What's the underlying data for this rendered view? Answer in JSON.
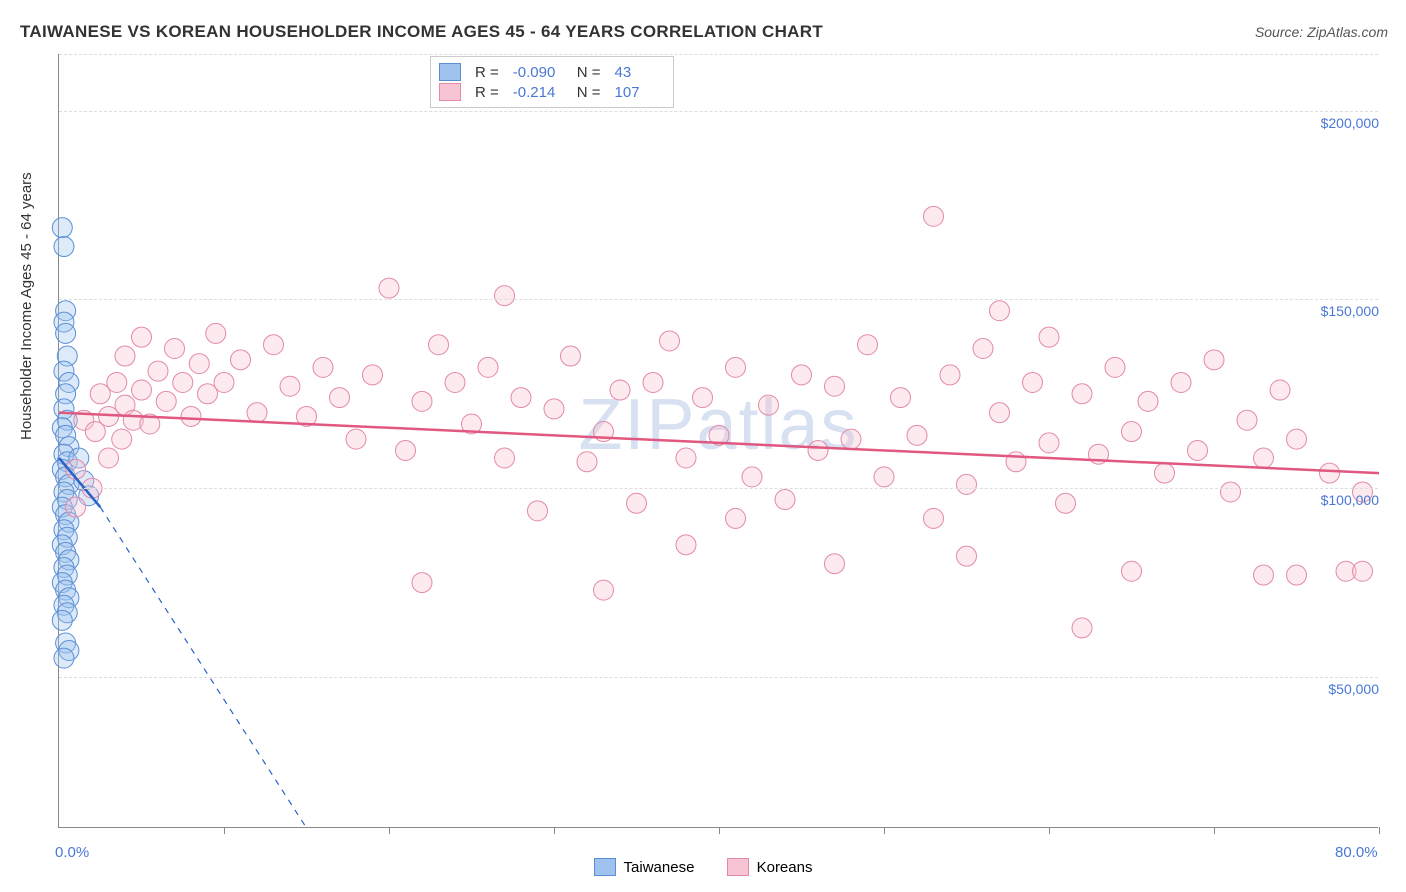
{
  "title": "TAIWANESE VS KOREAN HOUSEHOLDER INCOME AGES 45 - 64 YEARS CORRELATION CHART",
  "source": "Source: ZipAtlas.com",
  "watermark": "ZIPatlas",
  "y_axis_title": "Householder Income Ages 45 - 64 years",
  "chart": {
    "type": "scatter",
    "xlim": [
      0,
      80
    ],
    "ylim": [
      10000,
      215000
    ],
    "x_ticks_minor": [
      10,
      20,
      30,
      40,
      50,
      60,
      70,
      80
    ],
    "x_labels": [
      {
        "v": 0,
        "t": "0.0%"
      },
      {
        "v": 80,
        "t": "80.0%"
      }
    ],
    "y_gridlines": [
      50000,
      100000,
      150000,
      200000,
      215000
    ],
    "y_labels": [
      {
        "v": 50000,
        "t": "$50,000"
      },
      {
        "v": 100000,
        "t": "$100,000"
      },
      {
        "v": 150000,
        "t": "$150,000"
      },
      {
        "v": 200000,
        "t": "$200,000"
      }
    ],
    "background_color": "#ffffff",
    "grid_color": "#dddddd",
    "axis_color": "#888888",
    "label_color": "#4a78d6",
    "marker_radius": 10,
    "marker_opacity": 0.35,
    "series": [
      {
        "name": "Taiwanese",
        "color_fill": "#9fc2ef",
        "color_stroke": "#5a8fd6",
        "R": "-0.090",
        "N": "43",
        "trend": {
          "x1": 0,
          "y1": 108000,
          "x2": 2.5,
          "y2": 95000,
          "dash_x2": 15,
          "dash_y2": 10000,
          "color": "#2a62c9",
          "width": 2.5
        },
        "points": [
          [
            0.2,
            169000
          ],
          [
            0.3,
            164000
          ],
          [
            0.4,
            147000
          ],
          [
            0.3,
            144000
          ],
          [
            0.4,
            141000
          ],
          [
            0.5,
            135000
          ],
          [
            0.3,
            131000
          ],
          [
            0.6,
            128000
          ],
          [
            0.4,
            125000
          ],
          [
            0.3,
            121000
          ],
          [
            0.5,
            118000
          ],
          [
            0.2,
            116000
          ],
          [
            0.4,
            114000
          ],
          [
            0.6,
            111000
          ],
          [
            0.3,
            109000
          ],
          [
            0.5,
            107000
          ],
          [
            0.2,
            105000
          ],
          [
            0.4,
            103000
          ],
          [
            0.6,
            101000
          ],
          [
            0.3,
            99000
          ],
          [
            0.5,
            97000
          ],
          [
            0.2,
            95000
          ],
          [
            0.4,
            93000
          ],
          [
            0.6,
            91000
          ],
          [
            0.3,
            89000
          ],
          [
            0.5,
            87000
          ],
          [
            0.2,
            85000
          ],
          [
            0.4,
            83000
          ],
          [
            0.6,
            81000
          ],
          [
            0.3,
            79000
          ],
          [
            0.5,
            77000
          ],
          [
            0.2,
            75000
          ],
          [
            0.4,
            73000
          ],
          [
            0.6,
            71000
          ],
          [
            0.3,
            69000
          ],
          [
            0.5,
            67000
          ],
          [
            0.2,
            65000
          ],
          [
            0.4,
            59000
          ],
          [
            0.6,
            57000
          ],
          [
            0.3,
            55000
          ],
          [
            1.2,
            108000
          ],
          [
            1.5,
            102000
          ],
          [
            1.8,
            98000
          ]
        ]
      },
      {
        "name": "Koreans",
        "color_fill": "#f6c4d2",
        "color_stroke": "#e389a8",
        "R": "-0.214",
        "N": "107",
        "trend": {
          "x1": 0,
          "y1": 120000,
          "x2": 80,
          "y2": 104000,
          "color": "#e0577f",
          "width": 2.5
        },
        "points": [
          [
            1,
            95000
          ],
          [
            1,
            105000
          ],
          [
            1.5,
            118000
          ],
          [
            2,
            100000
          ],
          [
            2.2,
            115000
          ],
          [
            2.5,
            125000
          ],
          [
            3,
            108000
          ],
          [
            3,
            119000
          ],
          [
            3.5,
            128000
          ],
          [
            3.8,
            113000
          ],
          [
            4,
            122000
          ],
          [
            4,
            135000
          ],
          [
            4.5,
            118000
          ],
          [
            5,
            126000
          ],
          [
            5,
            140000
          ],
          [
            5.5,
            117000
          ],
          [
            6,
            131000
          ],
          [
            6.5,
            123000
          ],
          [
            7,
            137000
          ],
          [
            7.5,
            128000
          ],
          [
            8,
            119000
          ],
          [
            8.5,
            133000
          ],
          [
            9,
            125000
          ],
          [
            9.5,
            141000
          ],
          [
            10,
            128000
          ],
          [
            11,
            134000
          ],
          [
            12,
            120000
          ],
          [
            13,
            138000
          ],
          [
            14,
            127000
          ],
          [
            15,
            119000
          ],
          [
            16,
            132000
          ],
          [
            17,
            124000
          ],
          [
            18,
            113000
          ],
          [
            19,
            130000
          ],
          [
            20,
            153000
          ],
          [
            21,
            110000
          ],
          [
            22,
            123000
          ],
          [
            23,
            138000
          ],
          [
            22,
            75000
          ],
          [
            24,
            128000
          ],
          [
            25,
            117000
          ],
          [
            26,
            132000
          ],
          [
            27,
            108000
          ],
          [
            27,
            151000
          ],
          [
            28,
            124000
          ],
          [
            29,
            94000
          ],
          [
            30,
            121000
          ],
          [
            31,
            135000
          ],
          [
            32,
            107000
          ],
          [
            33,
            115000
          ],
          [
            33,
            73000
          ],
          [
            34,
            126000
          ],
          [
            35,
            96000
          ],
          [
            36,
            128000
          ],
          [
            37,
            139000
          ],
          [
            38,
            108000
          ],
          [
            38,
            85000
          ],
          [
            39,
            124000
          ],
          [
            40,
            114000
          ],
          [
            41,
            132000
          ],
          [
            41,
            92000
          ],
          [
            42,
            103000
          ],
          [
            43,
            122000
          ],
          [
            44,
            97000
          ],
          [
            45,
            130000
          ],
          [
            46,
            110000
          ],
          [
            47,
            127000
          ],
          [
            47,
            80000
          ],
          [
            48,
            113000
          ],
          [
            49,
            138000
          ],
          [
            50,
            103000
          ],
          [
            51,
            124000
          ],
          [
            52,
            114000
          ],
          [
            53,
            172000
          ],
          [
            53,
            92000
          ],
          [
            54,
            130000
          ],
          [
            55,
            101000
          ],
          [
            55,
            82000
          ],
          [
            56,
            137000
          ],
          [
            57,
            120000
          ],
          [
            57,
            147000
          ],
          [
            58,
            107000
          ],
          [
            59,
            128000
          ],
          [
            60,
            112000
          ],
          [
            60,
            140000
          ],
          [
            61,
            96000
          ],
          [
            62,
            125000
          ],
          [
            62,
            63000
          ],
          [
            63,
            109000
          ],
          [
            64,
            132000
          ],
          [
            65,
            115000
          ],
          [
            65,
            78000
          ],
          [
            66,
            123000
          ],
          [
            67,
            104000
          ],
          [
            68,
            128000
          ],
          [
            69,
            110000
          ],
          [
            70,
            134000
          ],
          [
            71,
            99000
          ],
          [
            72,
            118000
          ],
          [
            73,
            108000
          ],
          [
            73,
            77000
          ],
          [
            74,
            126000
          ],
          [
            75,
            77000
          ],
          [
            75,
            113000
          ],
          [
            77,
            104000
          ],
          [
            78,
            78000
          ],
          [
            79,
            99000
          ],
          [
            79,
            78000
          ]
        ]
      }
    ]
  },
  "legend_top": {
    "R_label": "R =",
    "N_label": "N ="
  },
  "legend_bottom": [
    {
      "label": "Taiwanese",
      "fill": "#9fc2ef",
      "stroke": "#5a8fd6"
    },
    {
      "label": "Koreans",
      "fill": "#f6c4d2",
      "stroke": "#e389a8"
    }
  ]
}
